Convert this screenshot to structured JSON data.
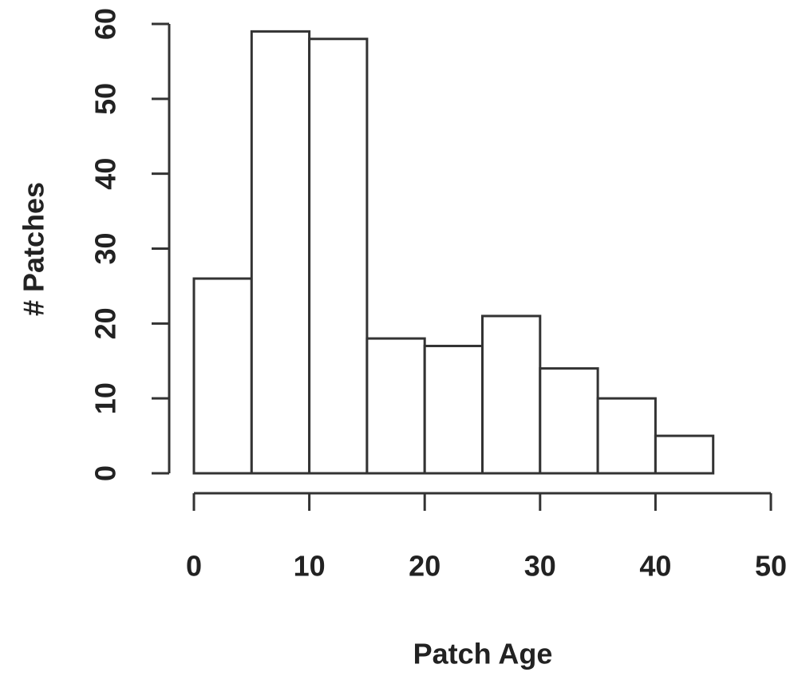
{
  "chart_data": {
    "type": "histogram",
    "xlabel": "Patch Age",
    "ylabel": "# Patches",
    "bins": [
      0,
      5,
      10,
      15,
      20,
      25,
      30,
      35,
      40,
      45
    ],
    "counts": [
      26,
      59,
      58,
      18,
      17,
      21,
      14,
      10,
      5
    ],
    "color": "#ffffff",
    "edgecolor": "#333333",
    "xlim": [
      0,
      50
    ],
    "xticks": [
      0,
      10,
      20,
      30,
      40,
      50
    ],
    "ylim": [
      0,
      60
    ],
    "yticks": [
      0,
      10,
      20,
      30,
      40,
      50,
      60
    ]
  }
}
